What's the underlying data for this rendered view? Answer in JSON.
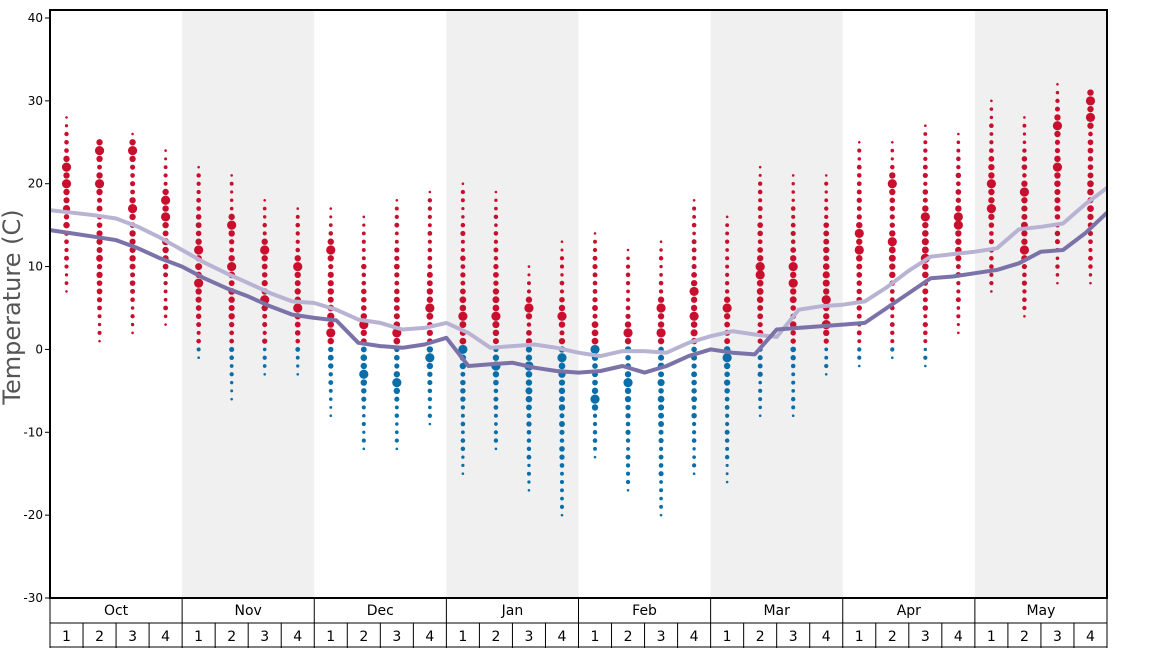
{
  "chart_data": {
    "type": "scatter",
    "ylabel": "Temperature (C)",
    "ylim": [
      -30,
      40
    ],
    "yticks": [
      40,
      30,
      20,
      10,
      0,
      -10,
      -20,
      -30
    ],
    "months": [
      "Oct",
      "Nov",
      "Dec",
      "Jan",
      "Feb",
      "Mar",
      "Apr",
      "May"
    ],
    "weeks": [
      "1",
      "2",
      "3",
      "4"
    ],
    "shaded_months": [
      "Nov",
      "Jan",
      "Mar",
      "May"
    ],
    "colors": {
      "warm_dot": "#c8102e",
      "cold_dot": "#0a6fa8",
      "upper_line": "#b9b3d3",
      "lower_line": "#7b72a8",
      "shade": "#f0f0f0"
    },
    "upper_line": [
      16.8,
      16.5,
      16.2,
      15.8,
      14.8,
      13.5,
      12.0,
      10.5,
      9.2,
      8.0,
      6.8,
      5.8,
      5.6,
      4.8,
      3.6,
      3.2,
      2.4,
      2.6,
      3.2,
      2.0,
      0.2,
      0.4,
      0.6,
      0.2,
      -0.4,
      -0.8,
      -0.2,
      -0.2,
      -0.4,
      0.8,
      1.6,
      2.2,
      1.8,
      1.5,
      4.8,
      5.2,
      5.4,
      5.8,
      7.5,
      9.5,
      11.2,
      11.5,
      11.8,
      12.2,
      14.5,
      14.8,
      15.2,
      17.5,
      19.5
    ],
    "lower_line": [
      14.4,
      14.0,
      13.6,
      13.2,
      12.2,
      11.0,
      10.0,
      8.6,
      7.4,
      6.4,
      5.2,
      4.2,
      3.8,
      3.5,
      0.8,
      0.4,
      0.2,
      0.6,
      1.4,
      -2.0,
      -1.8,
      -1.6,
      -2.2,
      -2.6,
      -2.8,
      -2.6,
      -2.0,
      -2.8,
      -2.0,
      -0.8,
      0.0,
      -0.4,
      -0.6,
      2.4,
      2.6,
      2.8,
      3.0,
      3.2,
      5.0,
      6.8,
      8.6,
      8.8,
      9.2,
      9.6,
      10.4,
      11.8,
      12.0,
      14.0,
      16.5
    ],
    "week_highs": [
      28,
      25,
      26,
      24,
      22,
      21,
      18,
      17,
      17,
      16,
      18,
      19,
      20,
      19,
      10,
      13,
      14,
      12,
      13,
      18,
      16,
      22,
      21,
      21,
      25,
      25,
      27,
      26,
      30,
      28,
      32,
      31
    ],
    "week_lows": [
      7,
      1,
      2,
      3,
      -1,
      -6,
      -3,
      -3,
      -8,
      -12,
      -12,
      -9,
      -15,
      -12,
      -17,
      -20,
      -13,
      -17,
      -20,
      -15,
      -16,
      -8,
      -8,
      -3,
      -2,
      -1,
      -2,
      2,
      7,
      4,
      8,
      8
    ],
    "big_dots": [
      [
        22,
        20
      ],
      [
        24,
        20
      ],
      [
        24,
        17
      ],
      [
        18,
        16
      ],
      [
        12,
        8
      ],
      [
        15,
        10
      ],
      [
        12,
        6
      ],
      [
        10,
        5
      ],
      [
        12,
        2
      ],
      [
        3,
        -3
      ],
      [
        2,
        -4
      ],
      [
        5,
        -1
      ],
      [
        4,
        0
      ],
      [
        4,
        -2
      ],
      [
        5,
        -2
      ],
      [
        4,
        -1
      ],
      [
        0,
        -6
      ],
      [
        2,
        -4
      ],
      [
        5,
        2
      ],
      [
        7,
        4
      ],
      [
        5,
        -1
      ],
      [
        10,
        9
      ],
      [
        10,
        8
      ],
      [
        6,
        3
      ],
      [
        14,
        12
      ],
      [
        20,
        13
      ],
      [
        16,
        11
      ],
      [
        16,
        15
      ],
      [
        20,
        17
      ],
      [
        19,
        12
      ],
      [
        27,
        22
      ],
      [
        30,
        28
      ]
    ]
  }
}
